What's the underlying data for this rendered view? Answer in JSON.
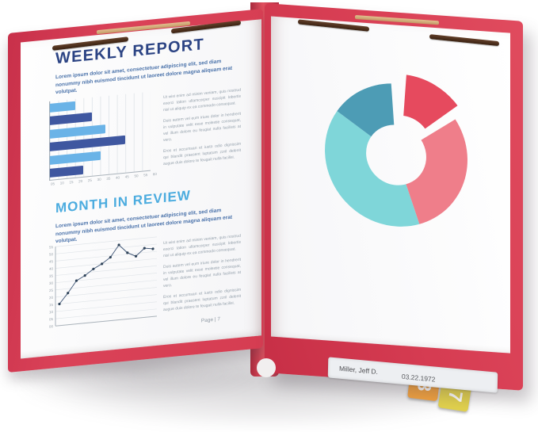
{
  "report": {
    "title": "WEEKLY REPORT",
    "section2_title": "MONTH IN REVIEW",
    "intro": "Lorem ipsum dolor sit amet, consectetuer adipiscing elit, sed diam nonummy nibh euismod tincidunt ut laoreet dolore magna aliquam erat volutpat.",
    "columns": {
      "para1": "Ut wisi enim ad minim veniam, quis nostrud exerci tation ullamcorper suscipit lobortis nisl ut aliquip ex ea commodo consequat.",
      "para2": "Duis autem vel eum iriure dolor in hendrerit in vulputate velit esse molestie consequat, vel illum dolore eu feugiat nulla facilisis at vero.",
      "para3": "Eros et accumsan et iusto odio dignissim qui blandit praesent luptatum zzril delenit augue duis dolore te feugait nulla facilisi."
    },
    "footer": "Page | 7"
  },
  "label": {
    "name": "Miller, Jeff D.",
    "date": "03.22.1972"
  },
  "tabs": [
    {
      "digit": "3",
      "color": "#f3a23e"
    },
    {
      "digit": "7",
      "color": "#e2d24d"
    }
  ],
  "folder": {
    "color": "#d63c52",
    "spine_color": "#b22e42",
    "fastener_prong_color": "#4d2d1b",
    "fastener_base_color": "#d6b082",
    "paper_color": "#ffffff"
  },
  "chart_data": [
    {
      "type": "bar",
      "orientation": "horizontal",
      "title": "",
      "values": [
        15,
        25,
        33,
        45,
        30,
        20
      ],
      "bar_colors_alternate": [
        "#6ab3e7",
        "#3f57a0"
      ],
      "xlim": [
        0,
        60
      ],
      "x_ticks": [
        "05",
        "10",
        "15",
        "20",
        "25",
        "30",
        "35",
        "40",
        "45",
        "50",
        "55",
        "60"
      ],
      "grid": "vertical-gridlines",
      "legend": "none"
    },
    {
      "type": "line",
      "title": "",
      "x": [
        1,
        2,
        3,
        4,
        5,
        6,
        7,
        8,
        9,
        10,
        11,
        12
      ],
      "values": [
        15,
        22,
        30,
        33,
        37,
        40,
        44,
        52,
        46,
        43,
        48,
        47
      ],
      "ylim": [
        0,
        55
      ],
      "y_ticks": [
        "00",
        "05",
        "10",
        "15",
        "20",
        "25",
        "30",
        "35",
        "40",
        "45",
        "50",
        "55"
      ],
      "line_color": "#4a5f7d",
      "marker_color": "#2e4258",
      "grid": "horizontal-gridlines",
      "legend": "none"
    },
    {
      "type": "donut",
      "title": "",
      "segments": [
        {
          "label": "exploded-red",
          "value": 13,
          "color": "#e64a5e",
          "start_deg": 4,
          "end_deg": 52,
          "exploded": true
        },
        {
          "label": "pink",
          "value": 29,
          "color": "#ef7e8a",
          "start_deg": 56,
          "end_deg": 161,
          "exploded": false
        },
        {
          "label": "light-teal",
          "value": 40,
          "color": "#7fd6d9",
          "start_deg": 161,
          "end_deg": 304,
          "exploded": false
        },
        {
          "label": "dark-teal",
          "value": 14,
          "color": "#4d9cb5",
          "start_deg": 304,
          "end_deg": 356,
          "exploded": false
        }
      ],
      "outer_radius": 90,
      "inner_radius": 38,
      "explode_offset": 14,
      "legend": "none"
    }
  ]
}
